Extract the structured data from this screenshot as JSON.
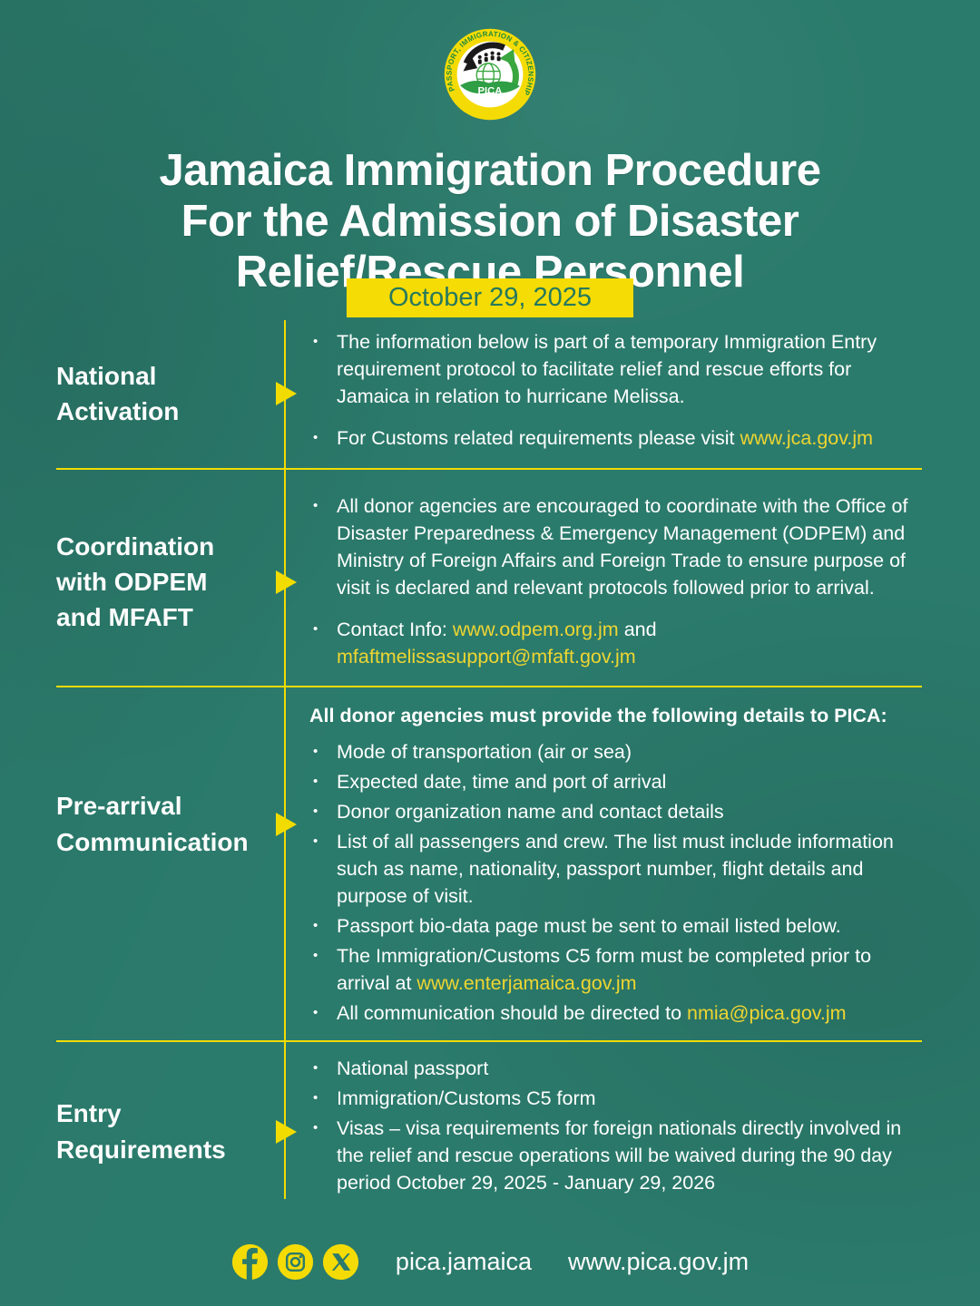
{
  "colors": {
    "background": "#2b7b6c",
    "accent_yellow": "#f2dc00",
    "link_yellow": "#eed531",
    "badge_text_green": "#26795d",
    "text_white": "#fdfdfd"
  },
  "logo": {
    "ring_text": "PASSPORT, IMMIGRATION & CITIZENSHIP AGENCY",
    "label": "PICA"
  },
  "header": {
    "title": "Jamaica Immigration Procedure\nFor the Admission of Disaster\nRelief/Rescue Personnel",
    "date": "October 29, 2025"
  },
  "sections": [
    {
      "heading": "National\nActivation",
      "tight": false,
      "rows": [
        {
          "type": "bullet",
          "segments": [
            {
              "t": "The information below is part of a temporary Immigration Entry requirement protocol to facilitate relief and rescue efforts for Jamaica in relation to hurricane Melissa."
            }
          ]
        },
        {
          "type": "bullet",
          "segments": [
            {
              "t": "For Customs related requirements please visit "
            },
            {
              "t": "www.jca.gov.jm",
              "link": true
            }
          ]
        }
      ]
    },
    {
      "heading": "Coordination\nwith ODPEM\nand MFAFT",
      "tight": false,
      "rows": [
        {
          "type": "bullet",
          "segments": [
            {
              "t": "All donor agencies are encouraged to coordinate with the Office of Disaster Preparedness & Emergency Management (ODPEM) and Ministry of Foreign Affairs and Foreign Trade to ensure purpose of visit is declared and relevant protocols followed prior to arrival."
            }
          ]
        },
        {
          "type": "bullet",
          "segments": [
            {
              "t": "Contact Info: "
            },
            {
              "t": "www.odpem.org.jm",
              "link": true
            },
            {
              "t": " and "
            },
            {
              "t": "mfaftmelissasupport@mfaft.gov.jm",
              "link": true
            }
          ]
        }
      ]
    },
    {
      "heading": "Pre-arrival\nCommunication",
      "tight": true,
      "rows": [
        {
          "type": "intro",
          "segments": [
            {
              "t": "All donor agencies must provide the following details to PICA:"
            }
          ]
        },
        {
          "type": "bullet",
          "segments": [
            {
              "t": "Mode of transportation (air or sea)"
            }
          ]
        },
        {
          "type": "bullet",
          "segments": [
            {
              "t": "Expected date, time and port of arrival"
            }
          ]
        },
        {
          "type": "bullet",
          "segments": [
            {
              "t": "Donor organization name and contact details"
            }
          ]
        },
        {
          "type": "bullet",
          "segments": [
            {
              "t": "List of all passengers and crew. The list must include information such as name, nationality, passport number, flight details and purpose of visit."
            }
          ]
        },
        {
          "type": "bullet",
          "segments": [
            {
              "t": "Passport bio-data page must be sent to email listed below."
            }
          ]
        },
        {
          "type": "bullet",
          "segments": [
            {
              "t": "The Immigration/Customs C5 form must be completed prior to arrival at "
            },
            {
              "t": "www.enterjamaica.gov.jm",
              "link": true
            }
          ]
        },
        {
          "type": "bullet",
          "segments": [
            {
              "t": "All communication should be directed to "
            },
            {
              "t": "nmia@pica.gov.jm",
              "link": true
            }
          ]
        }
      ]
    },
    {
      "heading": "Entry\nRequirements",
      "tight": true,
      "rows": [
        {
          "type": "bullet",
          "segments": [
            {
              "t": "National passport"
            }
          ]
        },
        {
          "type": "bullet",
          "segments": [
            {
              "t": "Immigration/Customs C5 form"
            }
          ]
        },
        {
          "type": "bullet",
          "segments": [
            {
              "t": "Visas – visa requirements for foreign nationals directly involved in the relief and rescue operations will be waived during the 90 day period October 29, 2025 - January 29, 2026"
            }
          ]
        }
      ]
    }
  ],
  "footer": {
    "social": [
      "facebook",
      "instagram",
      "x"
    ],
    "handle": "pica.jamaica",
    "website": "www.pica.gov.jm"
  }
}
